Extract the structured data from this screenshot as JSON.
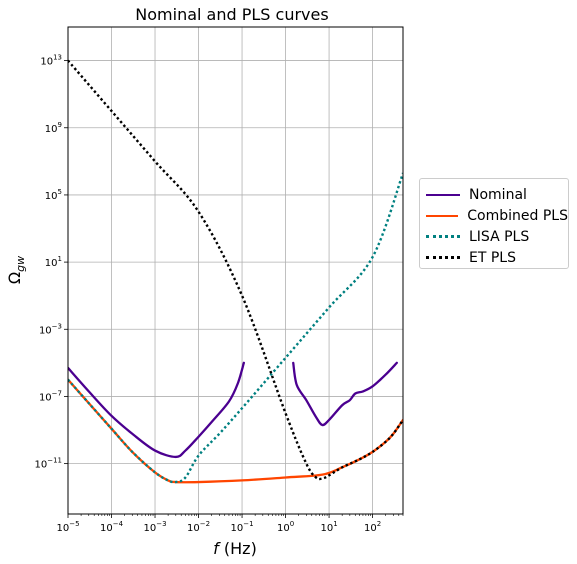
{
  "chart_data": {
    "type": "line",
    "title": "Nominal and PLS curves",
    "xlabel": "f (Hz)",
    "ylabel": "Ω_gw",
    "xscale": "log",
    "yscale": "log",
    "xlim": [
      1e-05,
      500
    ],
    "ylim": [
      1e-14,
      1000000000000000.0
    ],
    "grid": true,
    "legend_position": "outside-right",
    "x_ticks": [
      {
        "base": "10",
        "exp": "−5",
        "value": 1e-05
      },
      {
        "base": "10",
        "exp": "−4",
        "value": 0.0001
      },
      {
        "base": "10",
        "exp": "−3",
        "value": 0.001
      },
      {
        "base": "10",
        "exp": "−2",
        "value": 0.01
      },
      {
        "base": "10",
        "exp": "−1",
        "value": 0.1
      },
      {
        "base": "10",
        "exp": "0",
        "value": 1
      },
      {
        "base": "10",
        "exp": "1",
        "value": 10
      },
      {
        "base": "10",
        "exp": "2",
        "value": 100
      }
    ],
    "y_ticks": [
      {
        "base": "10",
        "exp": "13",
        "value": 10000000000000.0
      },
      {
        "base": "10",
        "exp": "9",
        "value": 1000000000.0
      },
      {
        "base": "10",
        "exp": "5",
        "value": 100000.0
      },
      {
        "base": "10",
        "exp": "1",
        "value": 10
      },
      {
        "base": "10",
        "exp": "−3",
        "value": 0.001
      },
      {
        "base": "10",
        "exp": "−7",
        "value": 1e-07
      },
      {
        "base": "10",
        "exp": "−11",
        "value": 1e-11
      }
    ],
    "series": [
      {
        "name": "Nominal",
        "color": "#4b0090",
        "style": "solid",
        "segments": [
          [
            [
              1e-05,
              5e-06
            ],
            [
              3e-05,
              2e-07
            ],
            [
              0.0001,
              7e-09
            ],
            [
              0.0003,
              6e-10
            ],
            [
              0.001,
              6e-11
            ],
            [
              0.003,
              2.5e-11
            ],
            [
              0.005,
              6e-11
            ],
            [
              0.01,
              4e-10
            ],
            [
              0.02,
              3e-09
            ],
            [
              0.05,
              5e-08
            ],
            [
              0.08,
              6e-07
            ],
            [
              0.11,
              1e-05
            ]
          ],
          [
            [
              1.5,
              1e-05
            ],
            [
              1.8,
              5e-07
            ],
            [
              3,
              6e-08
            ],
            [
              5,
              6e-09
            ],
            [
              7,
              2e-09
            ],
            [
              10,
              4e-09
            ],
            [
              20,
              3e-08
            ],
            [
              30,
              6e-08
            ],
            [
              40,
              1.5e-07
            ],
            [
              60,
              2e-07
            ],
            [
              100,
              4e-07
            ],
            [
              200,
              2e-06
            ],
            [
              360,
              1e-05
            ]
          ]
        ]
      },
      {
        "name": "Combined PLS",
        "color": "#ff4500",
        "style": "solid",
        "segments": [
          [
            [
              1e-05,
              1e-06
            ],
            [
              3e-05,
              4e-08
            ],
            [
              0.0001,
              1.2e-09
            ],
            [
              0.0003,
              5e-11
            ],
            [
              0.001,
              3e-12
            ],
            [
              0.002,
              1e-12
            ],
            [
              0.003,
              8e-13
            ],
            [
              0.01,
              8e-13
            ],
            [
              0.1,
              1e-12
            ],
            [
              1,
              1.5e-12
            ],
            [
              7,
              2.2e-12
            ],
            [
              20,
              6e-12
            ],
            [
              50,
              1.8e-11
            ],
            [
              100,
              5e-11
            ],
            [
              200,
              2e-10
            ],
            [
              300,
              6e-10
            ],
            [
              500,
              4e-09
            ]
          ]
        ]
      },
      {
        "name": "LISA PLS",
        "color": "#008080",
        "style": "dotted",
        "segments": [
          [
            [
              1e-05,
              1e-06
            ],
            [
              3e-05,
              4e-08
            ],
            [
              0.0001,
              1.2e-09
            ],
            [
              0.0003,
              5e-11
            ],
            [
              0.001,
              3e-12
            ],
            [
              0.002,
              1e-12
            ],
            [
              0.003,
              8e-13
            ],
            [
              0.005,
              1.5e-12
            ],
            [
              0.01,
              3e-11
            ],
            [
              0.03,
              6e-10
            ],
            [
              0.1,
              2e-08
            ],
            [
              1,
              2e-05
            ],
            [
              10,
              0.02
            ],
            [
              100,
              20
            ],
            [
              500,
              2000000.0
            ]
          ]
        ]
      },
      {
        "name": "ET PLS",
        "color": "#000000",
        "style": "dotted",
        "segments": [
          [
            [
              1e-05,
              10000000000000.0
            ],
            [
              0.0001,
              10000000000.0
            ],
            [
              0.001,
              10000000.0
            ],
            [
              0.01,
              10000.0
            ],
            [
              0.1,
              0.1
            ],
            [
              1,
              1e-08
            ],
            [
              3,
              1e-11
            ],
            [
              5,
              1.5e-12
            ],
            [
              7,
              1.3e-12
            ],
            [
              10,
              2e-12
            ],
            [
              20,
              6e-12
            ],
            [
              50,
              1.8e-11
            ],
            [
              100,
              5e-11
            ],
            [
              200,
              2e-10
            ],
            [
              300,
              6e-10
            ],
            [
              500,
              4e-09
            ]
          ]
        ]
      }
    ]
  }
}
